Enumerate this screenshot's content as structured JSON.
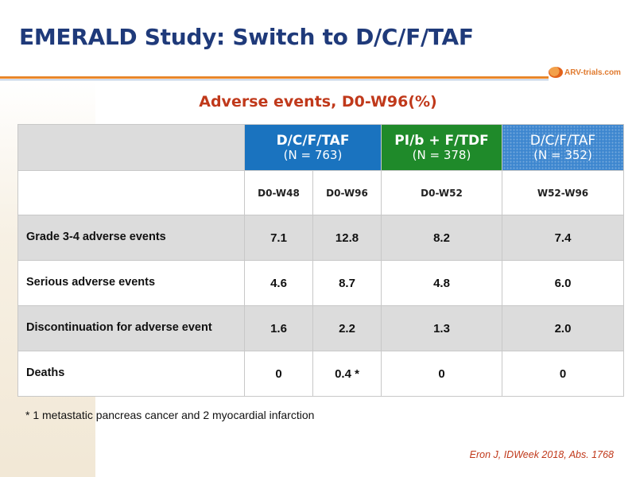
{
  "slide": {
    "title": "EMERALD Study: Switch to D/C/F/TAF",
    "logo_text": "ARV-trials.com",
    "subtitle": "Adverse events, D0-W96(%)"
  },
  "table": {
    "groups": [
      {
        "name": "D/C/F/TAF",
        "n": "(N = 763)",
        "color": "#1a73bf"
      },
      {
        "name": "PI/b + F/TDF",
        "n": "(N = 378)",
        "color": "#1f8a2a"
      },
      {
        "name": "D/C/F/TAF",
        "n": "(N = 352)",
        "color": "#3d86cf"
      }
    ],
    "periods": [
      "D0-W48",
      "D0-W96",
      "D0-W52",
      "W52-W96"
    ],
    "rows": [
      {
        "label": "Grade 3-4 adverse events",
        "values": [
          "7.1",
          "12.8",
          "8.2",
          "7.4"
        ]
      },
      {
        "label": "Serious adverse events",
        "values": [
          "4.6",
          "8.7",
          "4.8",
          "6.0"
        ]
      },
      {
        "label": "Discontinuation for adverse event",
        "values": [
          "1.6",
          "2.2",
          "1.3",
          "2.0"
        ]
      },
      {
        "label": "Deaths",
        "values": [
          "0",
          "0.4 *",
          "0",
          "0"
        ]
      }
    ]
  },
  "footnote": "* 1 metastatic pancreas cancer and 2 myocardial infarction",
  "source": "Eron J, IDWeek 2018, Abs. 1768"
}
